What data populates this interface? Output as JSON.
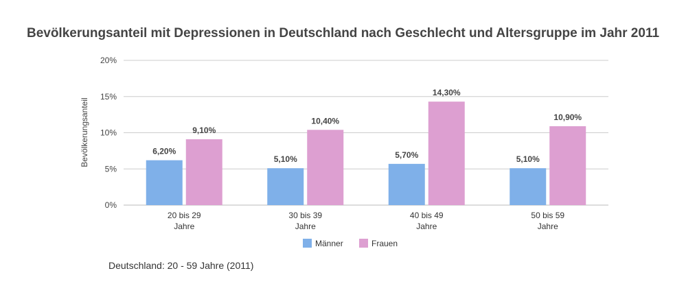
{
  "chart_data": {
    "type": "bar",
    "title": "Bevölkerungsanteil mit Depressionen in Deutschland nach Geschlecht und Altersgruppe im Jahr 2011",
    "ylabel": "Bevölkerungsanteil",
    "xlabel": "",
    "categories": [
      [
        "20 bis 29",
        "Jahre"
      ],
      [
        "30 bis 39",
        "Jahre"
      ],
      [
        "40 bis 49",
        "Jahre"
      ],
      [
        "50 bis 59",
        "Jahre"
      ]
    ],
    "series": [
      {
        "name": "Männer",
        "color": "#7fb0e9",
        "values": [
          6.2,
          5.1,
          5.7,
          5.1
        ],
        "labels": [
          "6,20%",
          "5,10%",
          "5,70%",
          "5,10%"
        ]
      },
      {
        "name": "Frauen",
        "color": "#dd9fd1",
        "values": [
          9.1,
          10.4,
          14.3,
          10.9
        ],
        "labels": [
          "9,10%",
          "10,40%",
          "14,30%",
          "10,90%"
        ]
      }
    ],
    "ylim": [
      0,
      20
    ],
    "yticks": [
      0,
      5,
      10,
      15,
      20
    ],
    "ytick_labels": [
      "0%",
      "5%",
      "10%",
      "15%",
      "20%"
    ],
    "grid": true,
    "legend": "bottom"
  },
  "source": "Deutschland: 20 - 59 Jahre (2011)"
}
